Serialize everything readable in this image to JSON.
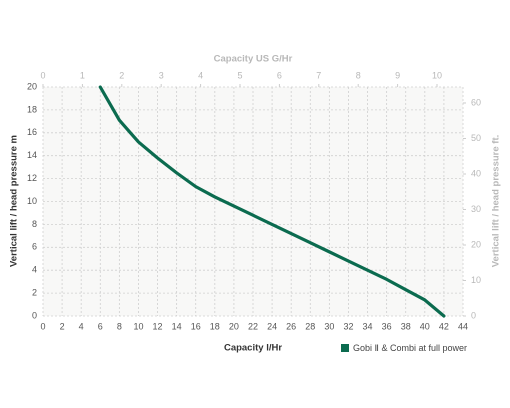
{
  "chart_data": {
    "type": "line",
    "xlabel": "Capacity l/Hr",
    "ylabel": "Vertical lift / head pressure m",
    "x2label": "Capacity US G/Hr",
    "y2label": "Vertical lift / head pressure ft.",
    "x": [
      6,
      8,
      10,
      12,
      14,
      16,
      18,
      20,
      22,
      24,
      26,
      28,
      30,
      32,
      34,
      36,
      38,
      40,
      42
    ],
    "series": [
      {
        "name": "Gobi Ⅱ & Combi at full power",
        "color": "#0b6b4f",
        "values": [
          20,
          17.1,
          15.2,
          13.8,
          12.5,
          11.3,
          10.4,
          9.6,
          8.8,
          8.0,
          7.2,
          6.4,
          5.6,
          4.8,
          4.0,
          3.2,
          2.3,
          1.4,
          0
        ]
      }
    ],
    "xlim": [
      0,
      44
    ],
    "xticks": [
      0,
      2,
      4,
      6,
      8,
      10,
      12,
      14,
      16,
      18,
      20,
      22,
      24,
      26,
      28,
      30,
      32,
      34,
      36,
      38,
      40,
      42,
      44
    ],
    "ylim": [
      0,
      20
    ],
    "yticks": [
      0,
      2,
      4,
      6,
      8,
      10,
      12,
      14,
      16,
      18,
      20
    ],
    "x2lim": [
      0,
      10.66
    ],
    "x2ticks": [
      0,
      1,
      2,
      3,
      4,
      5,
      6,
      7,
      8,
      9,
      10
    ],
    "y2lim": [
      0,
      64.5
    ],
    "y2ticks": [
      0,
      10,
      20,
      30,
      40,
      50,
      60
    ],
    "grid": true
  }
}
